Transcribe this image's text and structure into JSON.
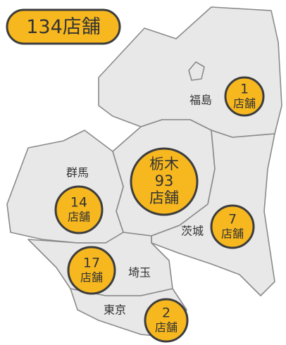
{
  "total": 134,
  "unit": "店舗",
  "regions": [
    {
      "name": "福島",
      "count": 1
    },
    {
      "name": "栃木",
      "count": 93
    },
    {
      "name": "群馬",
      "count": 14
    },
    {
      "name": "茨城",
      "count": 7
    },
    {
      "name": "埼玉",
      "count": 17
    },
    {
      "name": "東京",
      "count": 2
    }
  ]
}
